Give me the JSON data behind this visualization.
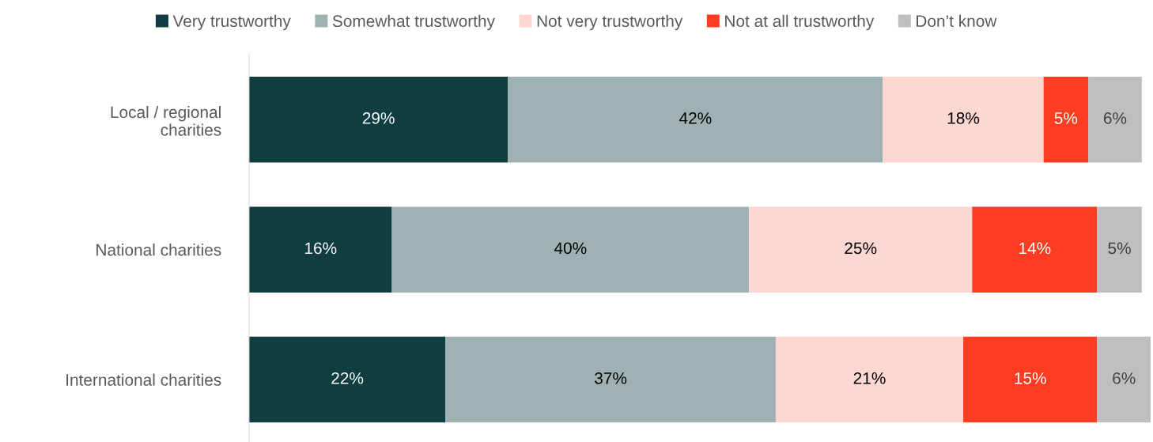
{
  "chart_data": {
    "type": "bar",
    "orientation": "horizontal",
    "stacked": true,
    "categories": [
      "Local / regional\ncharities",
      "National charities",
      "International charities"
    ],
    "xlim": [
      0,
      101
    ],
    "tick_labels": "y",
    "legend": "top",
    "grid": false,
    "series": [
      {
        "name": "Very trustworthy",
        "color": "#0f3d40",
        "values": [
          29,
          16,
          22
        ],
        "value_labels": [
          "29%",
          "16%",
          "22%"
        ]
      },
      {
        "name": "Somewhat trustworthy",
        "color": "#9fb1b2",
        "values": [
          42,
          40,
          37
        ],
        "value_labels": [
          "42%",
          "40%",
          "37%"
        ]
      },
      {
        "name": "Not very trustworthy",
        "color": "#fdd7d2",
        "values": [
          18,
          25,
          21
        ],
        "value_labels": [
          "18%",
          "25%",
          "21%"
        ]
      },
      {
        "name": "Not at all trustworthy",
        "color": "#fe3c22",
        "values": [
          5,
          14,
          15
        ],
        "value_labels": [
          "5%",
          "14%",
          "15%"
        ]
      },
      {
        "name": "Don’t know",
        "color": "#bfbfbf",
        "values": [
          6,
          5,
          6
        ],
        "value_labels": [
          "6%",
          "5%",
          "6%"
        ]
      }
    ]
  }
}
